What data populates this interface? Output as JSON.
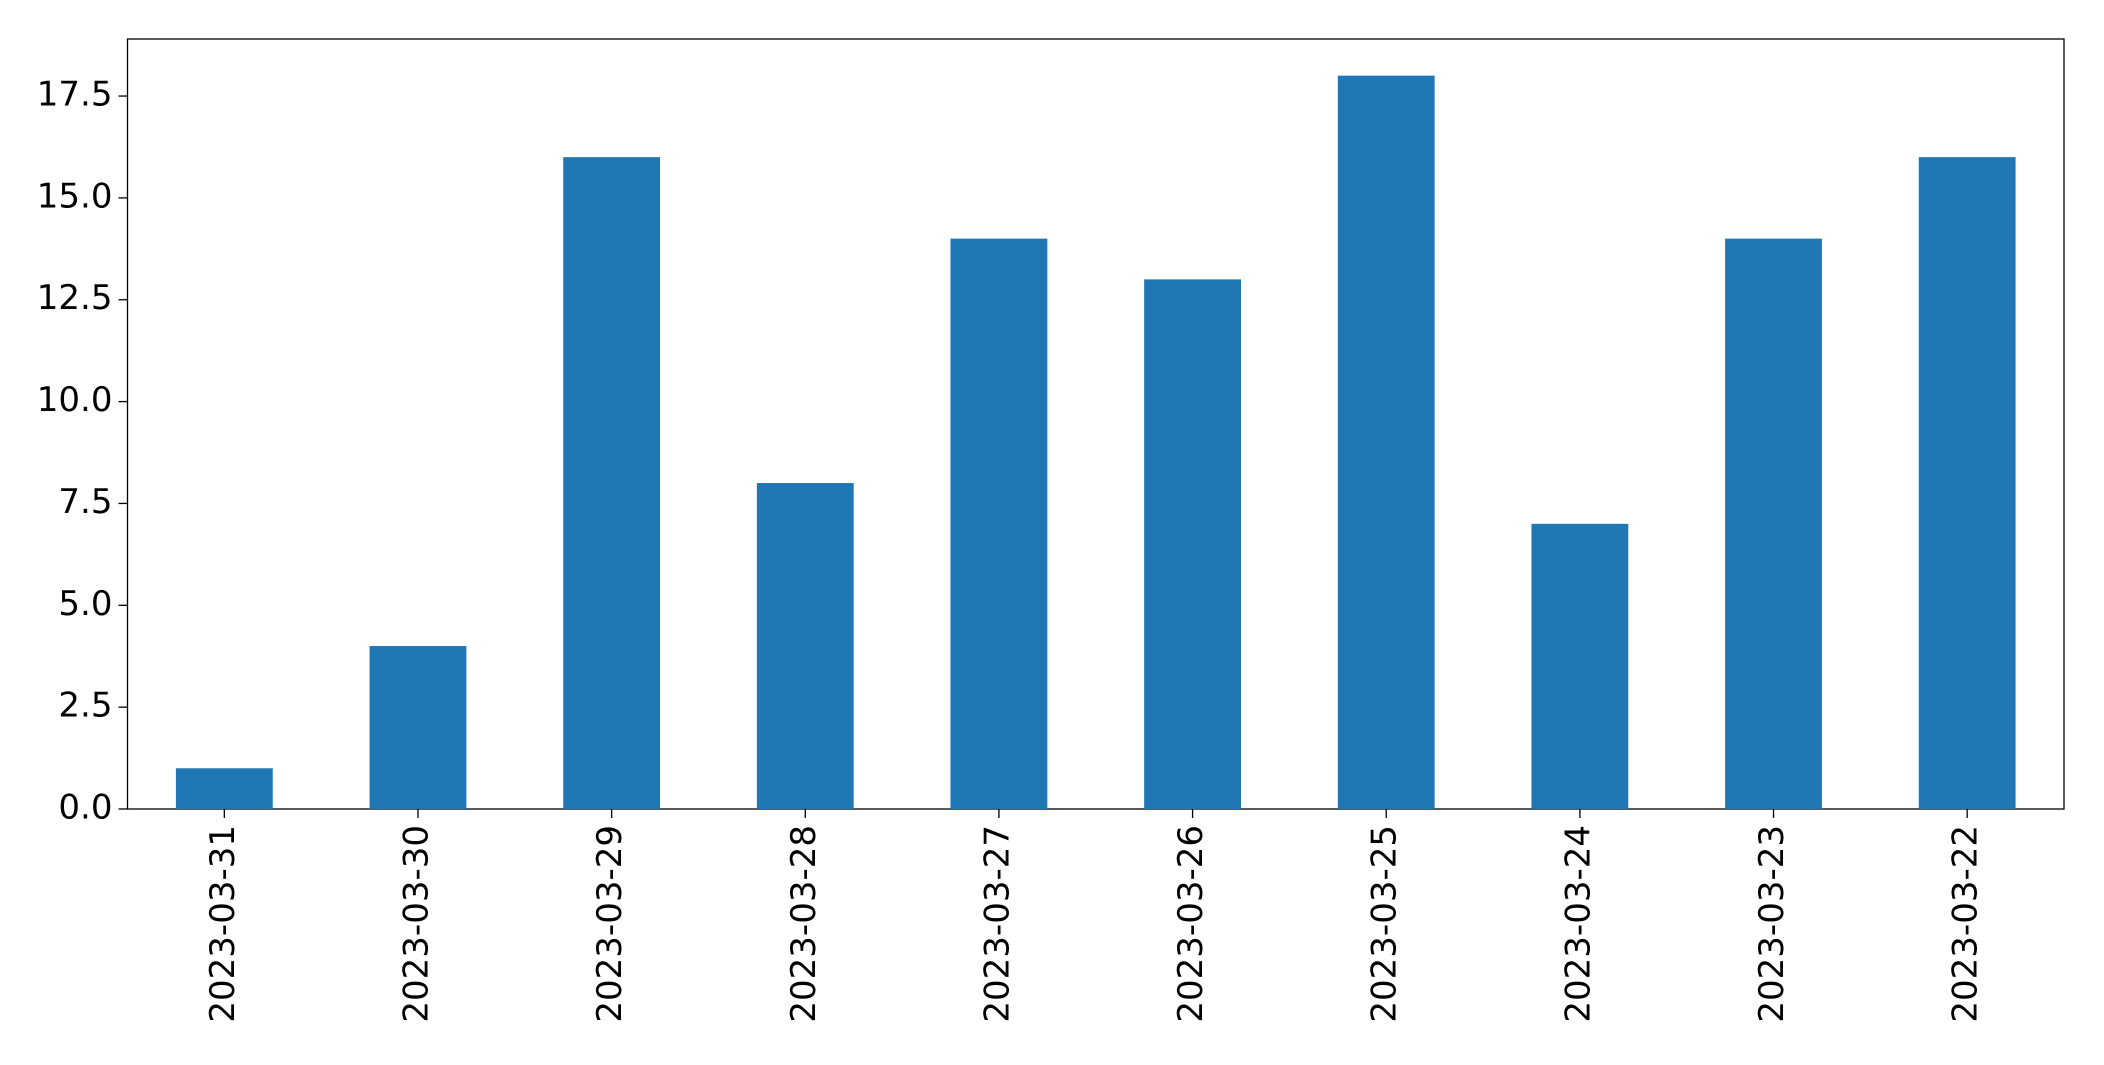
{
  "chart_data": {
    "type": "bar",
    "categories": [
      "2023-03-31",
      "2023-03-30",
      "2023-03-29",
      "2023-03-28",
      "2023-03-27",
      "2023-03-26",
      "2023-03-25",
      "2023-03-24",
      "2023-03-23",
      "2023-03-22"
    ],
    "values": [
      1,
      4,
      16,
      8,
      14,
      13,
      18,
      7,
      14,
      16
    ],
    "color": "#1f77b4",
    "ylim": [
      0,
      18.9
    ],
    "yticks": [
      {
        "value": 0,
        "label": "0.0"
      },
      2.5,
      {
        "value": 5,
        "label": "5.0"
      },
      7.5,
      {
        "value": 10,
        "label": "10.0"
      },
      12.5,
      {
        "value": 15,
        "label": "15.0"
      },
      17.5
    ],
    "grid": false
  }
}
